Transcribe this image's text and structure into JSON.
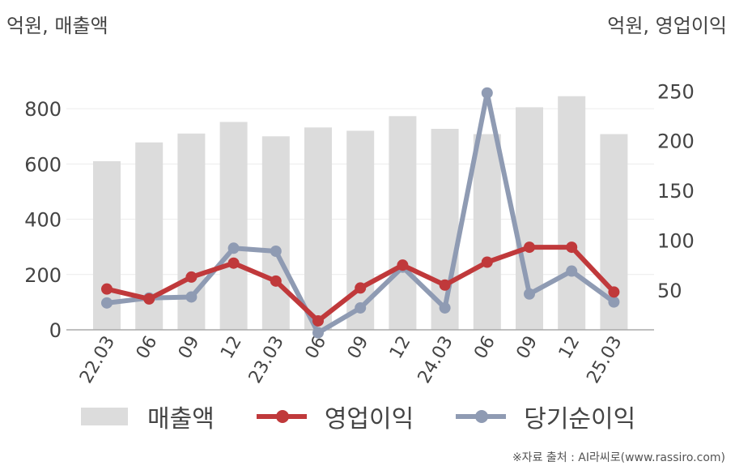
{
  "header": {
    "left_unit": "억원, 매출액",
    "right_unit": "억원, 영업이익"
  },
  "chart_data": {
    "type": "bar+line",
    "categories": [
      "22.03",
      "06",
      "09",
      "12",
      "23.03",
      "06",
      "09",
      "12",
      "24.03",
      "06",
      "09",
      "12",
      "25.03"
    ],
    "series": [
      {
        "name": "매출액",
        "type": "bar",
        "axis": "left",
        "color": "#dcdcdc",
        "values": [
          610,
          678,
          710,
          752,
          700,
          732,
          720,
          773,
          727,
          708,
          805,
          845,
          708
        ]
      },
      {
        "name": "영업이익",
        "type": "line",
        "axis": "right",
        "color": "#c0393b",
        "values": [
          51,
          41,
          63,
          77,
          59,
          19,
          52,
          75,
          55,
          78,
          93,
          93,
          48
        ]
      },
      {
        "name": "당기순이익",
        "type": "line",
        "axis": "right",
        "color": "#8f9bb3",
        "values": [
          37,
          42,
          43,
          92,
          89,
          7,
          32,
          73,
          32,
          248,
          46,
          69,
          38
        ]
      }
    ],
    "y_left": {
      "min": 0,
      "max": 900,
      "ticks": [
        0,
        200,
        400,
        600,
        800
      ]
    },
    "y_right": {
      "min": 10,
      "max": 260,
      "ticks": [
        50,
        100,
        150,
        200,
        250
      ]
    },
    "grid": true,
    "legend_position": "bottom"
  },
  "legend": [
    "매출액",
    "영업이익",
    "당기순이익"
  ],
  "source": "※자료 출처 : AI라씨로(www.rassiro.com)"
}
